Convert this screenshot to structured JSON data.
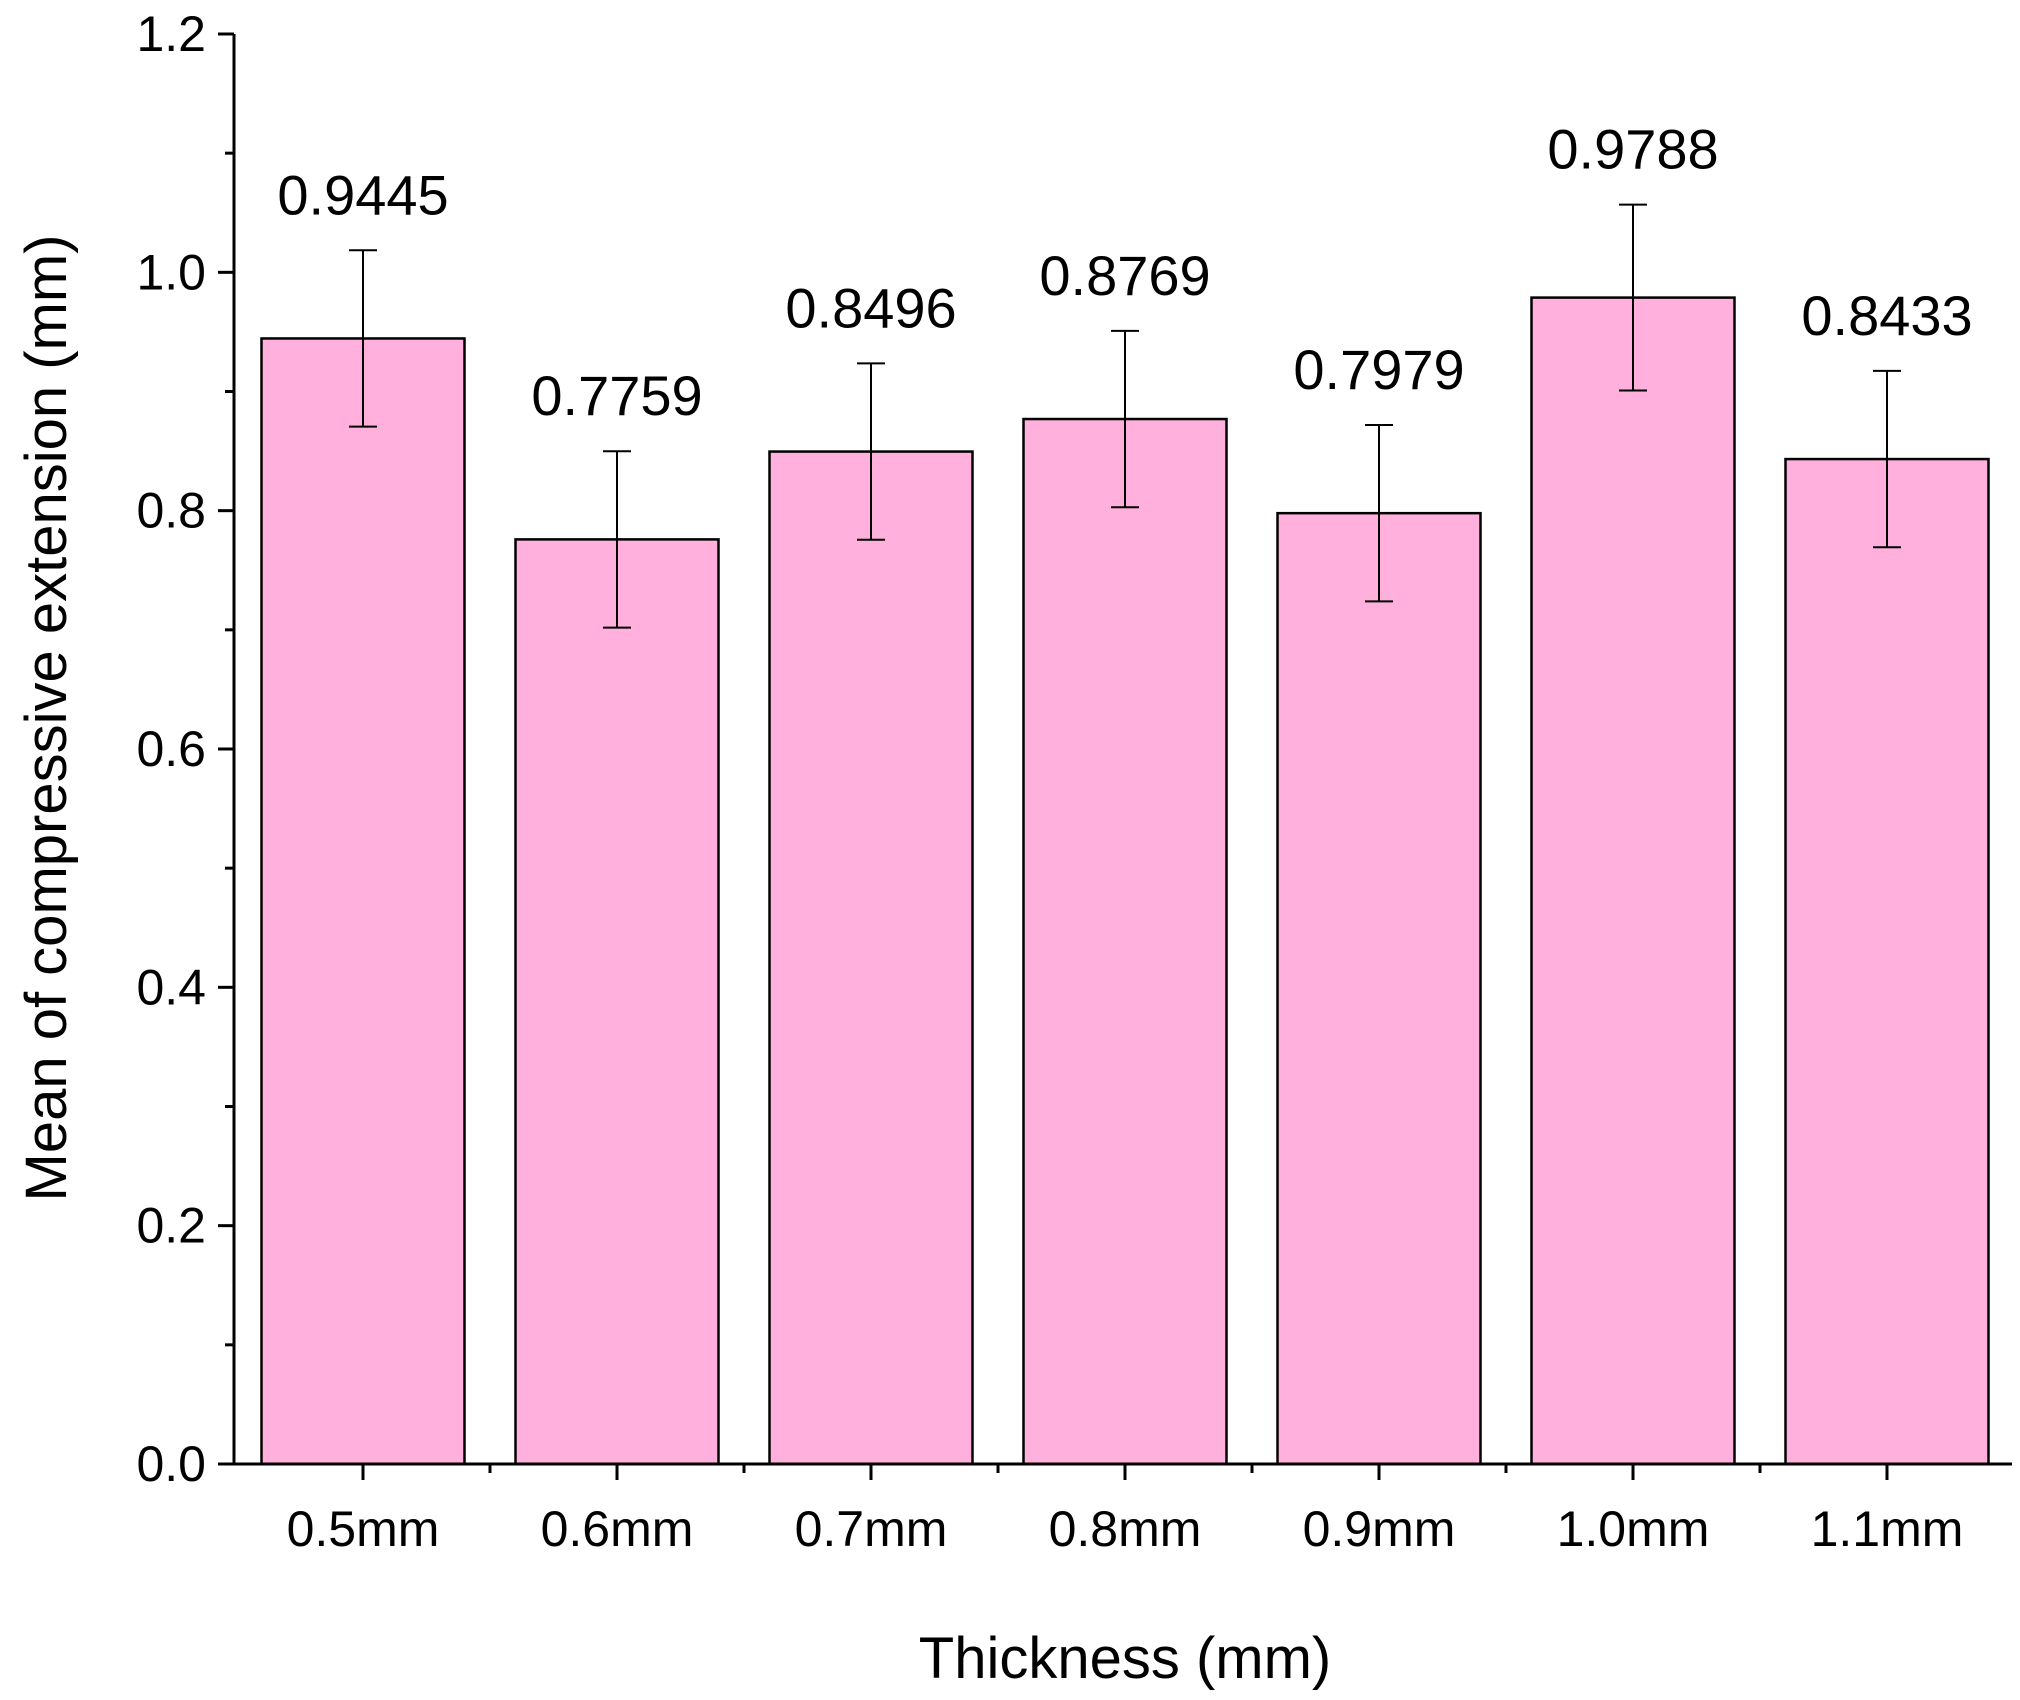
{
  "chart_data": {
    "type": "bar",
    "title": "",
    "xlabel": "Thickness (mm)",
    "ylabel": "Mean of compressive extension (mm)",
    "categories": [
      "0.5mm",
      "0.6mm",
      "0.7mm",
      "0.8mm",
      "0.9mm",
      "1.0mm",
      "1.1mm"
    ],
    "values": [
      0.9445,
      0.7759,
      0.8496,
      0.8769,
      0.7979,
      0.9788,
      0.8433
    ],
    "data_labels": [
      "0.9445",
      "0.7759",
      "0.8496",
      "0.8769",
      "0.7979",
      "0.9788",
      "0.8433"
    ],
    "error": [
      0.074,
      0.074,
      0.074,
      0.074,
      0.074,
      0.078,
      0.074
    ],
    "ylim": [
      0,
      1.2
    ],
    "yticks": [
      0.0,
      0.2,
      0.4,
      0.6,
      0.8,
      1.0,
      1.2
    ],
    "ytick_labels": [
      "0.0",
      "0.2",
      "0.4",
      "0.6",
      "0.8",
      "1.0",
      "1.2"
    ],
    "grid": false,
    "legend": "none",
    "bar_color": "#ffb0dc",
    "edge_color": "#000000"
  }
}
